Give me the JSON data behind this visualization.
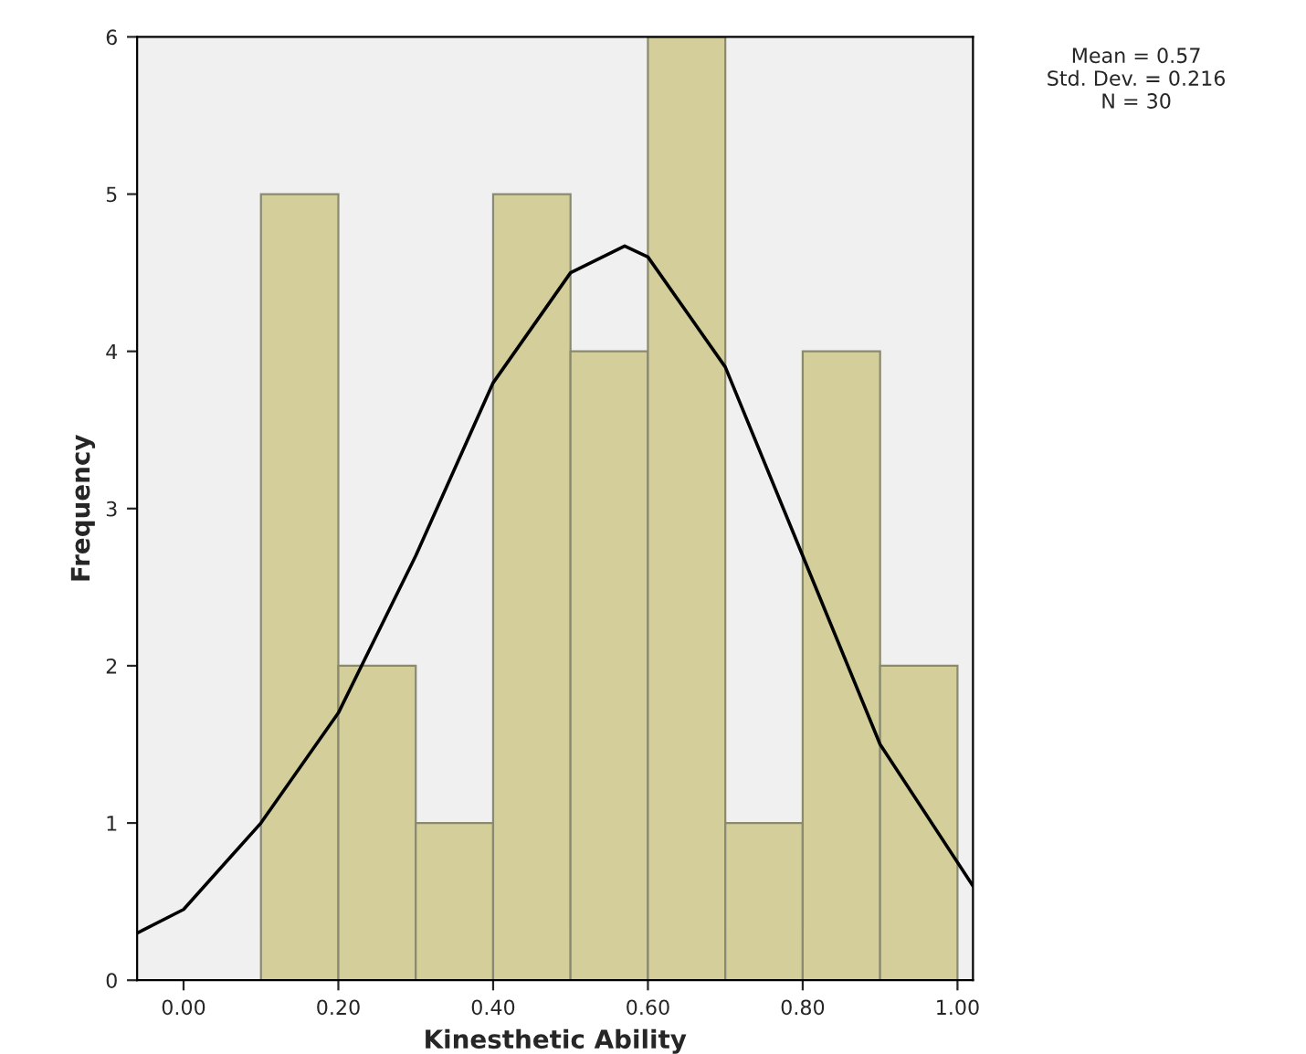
{
  "chart_data": {
    "type": "histogram",
    "xlabel": "Kinesthetic Ability",
    "ylabel": "Frequency",
    "bins": [
      0.1,
      0.2,
      0.3,
      0.4,
      0.5,
      0.6,
      0.7,
      0.8,
      0.9,
      1.0
    ],
    "values": [
      5,
      2,
      1,
      5,
      4,
      6,
      1,
      4,
      2
    ],
    "color": "#d4cf9a",
    "series": [
      {
        "type": "line",
        "color": "#000000",
        "x": [
          -0.06,
          0.0,
          0.1,
          0.2,
          0.3,
          0.4,
          0.5,
          0.57,
          0.6,
          0.7,
          0.8,
          0.9,
          1.02
        ],
        "values": [
          0.3,
          0.45,
          1.0,
          1.7,
          2.7,
          3.8,
          4.5,
          4.67,
          4.6,
          3.9,
          2.7,
          1.5,
          0.6
        ]
      }
    ],
    "xlim": [
      -0.06,
      1.02
    ],
    "ylim": [
      0,
      6
    ],
    "xticks": [
      {
        "value": 0,
        "label": "0.00"
      },
      {
        "value": 0.2,
        "label": "0.20"
      },
      {
        "value": 0.4,
        "label": "0.40"
      },
      {
        "value": 0.6,
        "label": "0.60"
      },
      {
        "value": 0.8,
        "label": "0.80"
      },
      {
        "value": 1.0,
        "label": "1.00"
      }
    ],
    "yticks": [
      0,
      1,
      2,
      3,
      4,
      5,
      6
    ],
    "annotations": [
      "Mean = 0.57\nStd. Dev. = 0.216\nN = 30"
    ],
    "grid": false
  }
}
